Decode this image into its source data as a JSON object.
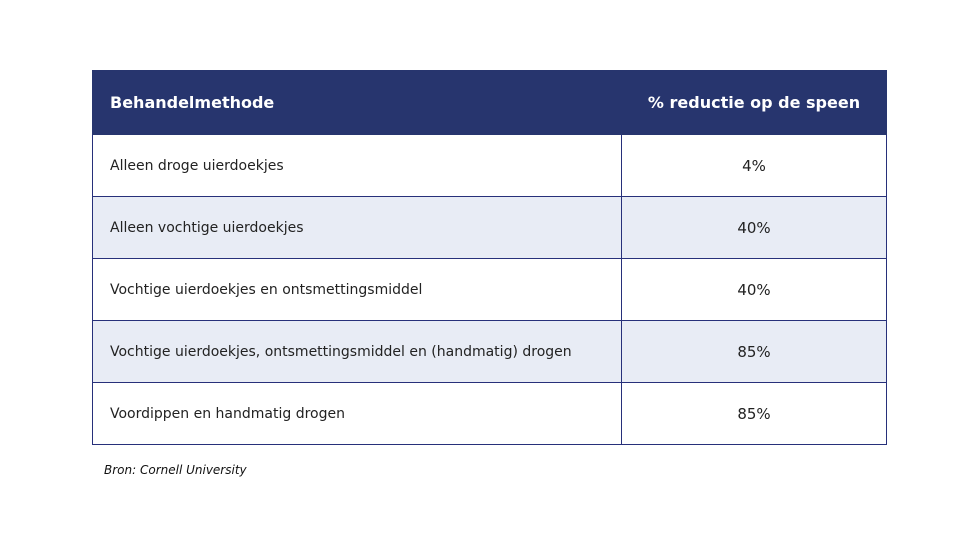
{
  "table": {
    "headers": [
      "Behandelmethode",
      "% reductie op de speen"
    ],
    "rows": [
      {
        "method": "Alleen droge uierdoekjes",
        "reduction": "4%"
      },
      {
        "method": "Alleen vochtige uierdoekjes",
        "reduction": "40%"
      },
      {
        "method": "Vochtige uierdoekjes en ontsmettingsmiddel",
        "reduction": "40%"
      },
      {
        "method": "Vochtige uierdoekjes, ontsmettingsmiddel en (handmatig) drogen",
        "reduction": "85%"
      },
      {
        "method": "Voordippen en handmatig drogen",
        "reduction": "85%"
      }
    ]
  },
  "source": "Bron: Cornell University",
  "colors": {
    "header_bg": "#27356e",
    "stripe_bg": "#e8ecf5",
    "border": "#27307a"
  }
}
